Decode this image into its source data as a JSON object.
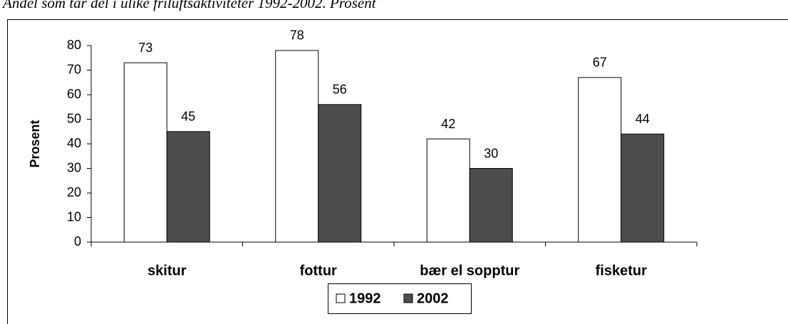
{
  "chart_data": {
    "type": "bar",
    "title": "Andel som tar del i ulike friluftsaktiviteter 1992-2002. Prosent",
    "y_label": "Prosent",
    "categories": [
      "skitur",
      "fottur",
      "bær el sopptur",
      "fisketur"
    ],
    "series": [
      {
        "name": "1992",
        "color": "#ffffff",
        "values": [
          73,
          78,
          42,
          67
        ]
      },
      {
        "name": "2002",
        "color": "#4d4d4d",
        "values": [
          45,
          56,
          30,
          44
        ]
      }
    ],
    "ylim": [
      0,
      80
    ],
    "yticks": [
      0,
      10,
      20,
      30,
      40,
      50,
      60,
      70,
      80
    ],
    "legend": "bottom"
  }
}
